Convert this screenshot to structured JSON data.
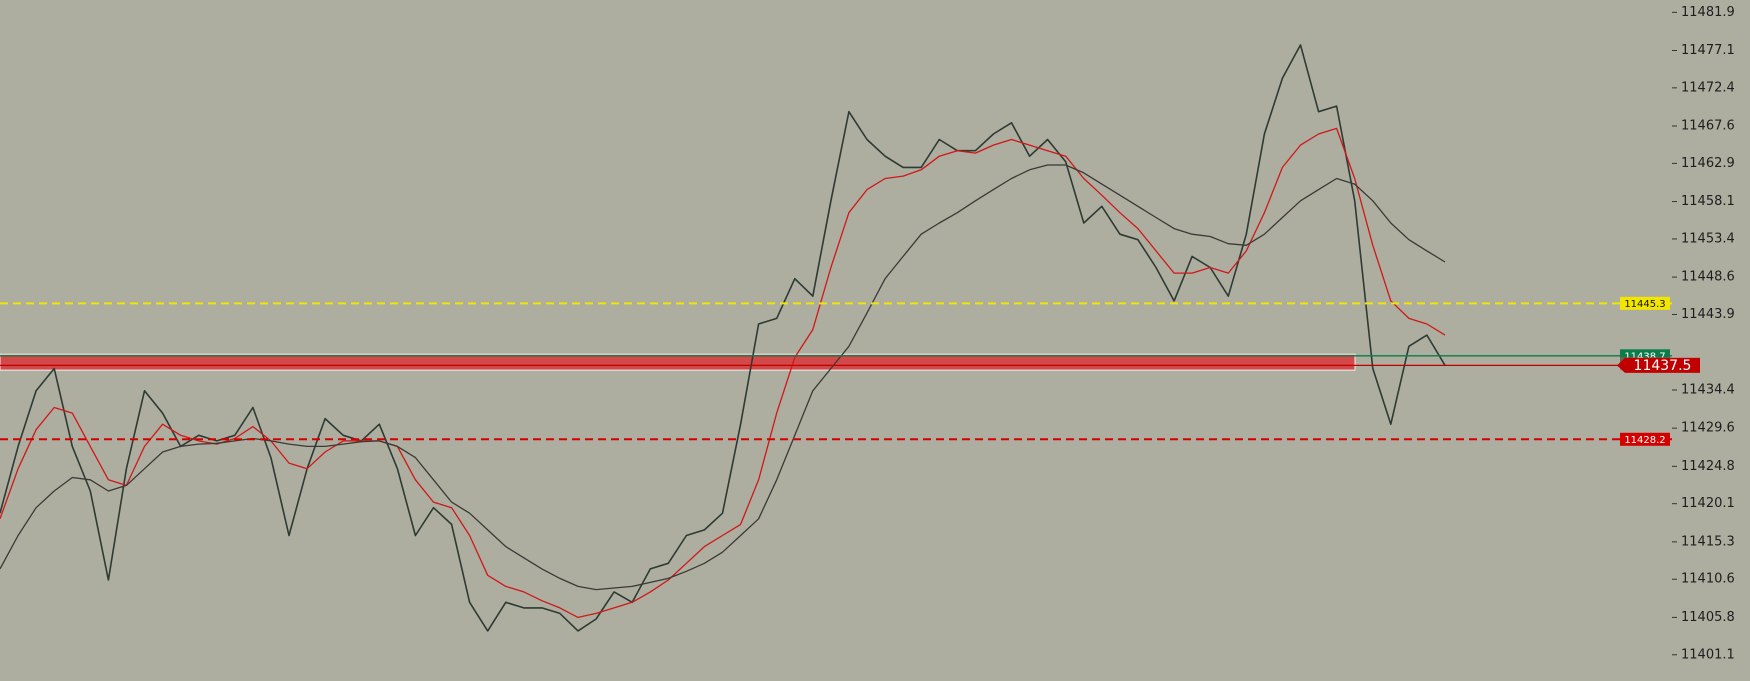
{
  "chart_data": {
    "type": "line",
    "ylim": [
      11397.8,
      11483.45
    ],
    "yticks": [
      11481.9,
      11477.1,
      11472.4,
      11467.6,
      11462.9,
      11458.1,
      11453.4,
      11448.6,
      11443.9,
      11434.4,
      11429.6,
      11424.8,
      11420.1,
      11415.3,
      11410.6,
      11405.8,
      11401.1
    ],
    "series": [
      {
        "color": "#2d3b33",
        "values": [
          11418.9,
          11427.3,
          11434.3,
          11437.1,
          11427.3,
          11421.7,
          11410.5,
          11424.5,
          11434.3,
          11431.5,
          11427.3,
          11428.7,
          11428.0,
          11428.7,
          11432.2,
          11425.9,
          11416.1,
          11424.5,
          11430.8,
          11428.7,
          11428.0,
          11430.1,
          11424.5,
          11416.1,
          11419.6,
          11417.5,
          11407.7,
          11404.1,
          11407.7,
          11407.0,
          11407.0,
          11406.3,
          11404.1,
          11405.6,
          11409.0,
          11407.7,
          11411.9,
          11412.6,
          11416.1,
          11416.8,
          11418.9,
          11430.1,
          11442.7,
          11443.4,
          11448.4,
          11446.2,
          11458.2,
          11469.4,
          11465.9,
          11463.8,
          11462.4,
          11462.4,
          11465.9,
          11464.5,
          11464.5,
          11466.6,
          11468.0,
          11463.8,
          11465.9,
          11463.1,
          11455.4,
          11457.5,
          11454.0,
          11453.3,
          11449.8,
          11445.6,
          11451.2,
          11449.8,
          11446.2,
          11454.0,
          11466.6,
          11473.6,
          11477.8,
          11469.4,
          11470.1,
          11458.2,
          11437.1,
          11430.1,
          11439.9,
          11441.3,
          11437.5
        ]
      },
      {
        "color": "#d01818",
        "values": [
          11418.2,
          11424.5,
          11429.4,
          11432.2,
          11431.5,
          11427.3,
          11423.1,
          11422.4,
          11427.3,
          11430.1,
          11428.7,
          11428.0,
          11427.6,
          11428.3,
          11429.8,
          11428.0,
          11425.2,
          11424.5,
          11426.6,
          11428.0,
          11428.0,
          11428.0,
          11427.3,
          11423.1,
          11420.3,
          11419.6,
          11416.1,
          11411.1,
          11409.7,
          11409.0,
          11407.9,
          11407.0,
          11405.8,
          11406.3,
          11407.0,
          11407.7,
          11409.0,
          11410.5,
          11412.6,
          11414.7,
          11416.1,
          11417.5,
          11423.1,
          11431.5,
          11438.5,
          11442.0,
          11449.8,
          11456.7,
          11459.6,
          11461.0,
          11461.3,
          11462.1,
          11463.8,
          11464.5,
          11464.2,
          11465.2,
          11465.9,
          11465.2,
          11464.5,
          11463.8,
          11461.0,
          11458.9,
          11456.7,
          11454.7,
          11451.9,
          11449.1,
          11449.1,
          11449.8,
          11449.1,
          11451.9,
          11456.7,
          11462.4,
          11465.2,
          11466.6,
          11467.3,
          11461.0,
          11452.6,
          11445.6,
          11443.4,
          11442.7,
          11441.3
        ]
      },
      {
        "color": "#3a3a36",
        "values": [
          11411.9,
          11416.1,
          11419.6,
          11421.7,
          11423.4,
          11423.1,
          11421.7,
          11422.4,
          11424.5,
          11426.6,
          11427.3,
          11427.6,
          11427.7,
          11428.0,
          11428.3,
          11428.0,
          11427.6,
          11427.3,
          11427.3,
          11427.6,
          11427.9,
          11428.0,
          11427.3,
          11425.9,
          11423.1,
          11420.3,
          11418.9,
          11416.8,
          11414.7,
          11413.3,
          11411.9,
          11410.7,
          11409.7,
          11409.3,
          11409.5,
          11409.7,
          11410.2,
          11410.7,
          11411.6,
          11412.6,
          11414.0,
          11416.1,
          11418.2,
          11423.1,
          11428.7,
          11434.3,
          11437.1,
          11439.9,
          11444.1,
          11448.4,
          11451.2,
          11454.0,
          11455.4,
          11456.7,
          11458.2,
          11459.6,
          11461.0,
          11462.1,
          11462.7,
          11462.7,
          11461.7,
          11460.3,
          11458.9,
          11457.5,
          11456.1,
          11454.7,
          11454.0,
          11453.7,
          11452.8,
          11452.6,
          11454.0,
          11456.1,
          11458.2,
          11459.6,
          11461.0,
          11460.3,
          11458.2,
          11455.4,
          11453.3,
          11451.9,
          11450.5
        ]
      }
    ],
    "zone": {
      "from": 11436.9,
      "to": 11438.9,
      "color": "#d9363a"
    },
    "levels": [
      {
        "value": 11445.3,
        "color": "#f2e600",
        "style": "dashed"
      },
      {
        "value": 11428.2,
        "color": "#d40000",
        "style": "dashed"
      },
      {
        "value": 11438.7,
        "color": "#0b7d4c",
        "style": "solid"
      },
      {
        "value": 11437.7,
        "color": "#c84848",
        "style": "label"
      },
      {
        "value": 11437.5,
        "color": "#c00000",
        "style": "solid"
      }
    ]
  }
}
